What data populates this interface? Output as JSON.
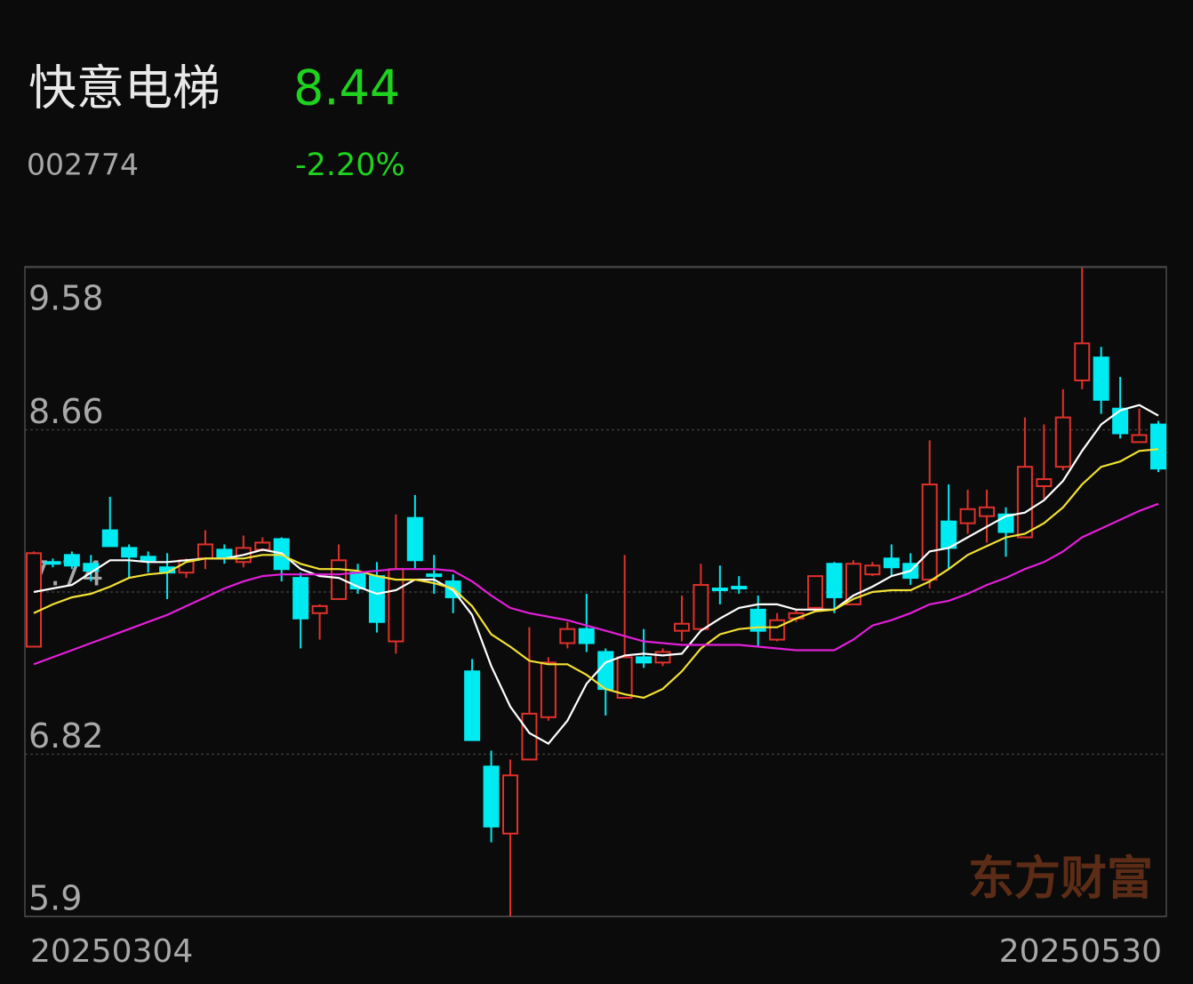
{
  "header": {
    "name": "快意电梯",
    "price": "8.44",
    "code": "002774",
    "change": "-2.20%"
  },
  "watermark": "东方财富",
  "chart_data": {
    "type": "candlestick",
    "categories": [
      "20250304",
      null,
      null,
      null,
      null,
      null,
      null,
      null,
      null,
      null,
      null,
      null,
      null,
      null,
      null,
      null,
      null,
      null,
      null,
      null,
      null,
      null,
      null,
      null,
      null,
      null,
      null,
      null,
      null,
      null,
      null,
      null,
      null,
      null,
      null,
      null,
      null,
      null,
      null,
      null,
      null,
      null,
      null,
      null,
      null,
      null,
      null,
      null,
      null,
      null,
      null,
      null,
      null,
      null,
      null,
      null,
      null,
      null,
      null,
      "20250530"
    ],
    "open": [
      7.43,
      7.91,
      7.95,
      7.9,
      8.09,
      7.99,
      7.94,
      7.88,
      7.85,
      7.93,
      7.98,
      7.91,
      7.98,
      8.04,
      7.82,
      7.62,
      7.7,
      7.85,
      7.83,
      7.46,
      8.16,
      7.84,
      7.8,
      7.29,
      6.75,
      6.37,
      6.79,
      7.03,
      7.45,
      7.53,
      7.4,
      7.14,
      7.37,
      7.34,
      7.52,
      7.53,
      7.76,
      7.77,
      7.64,
      7.47,
      7.59,
      7.65,
      7.9,
      7.67,
      7.84,
      7.93,
      7.9,
      7.81,
      8.14,
      8.13,
      8.17,
      8.18,
      8.05,
      8.34,
      8.45,
      8.94,
      9.07,
      8.78,
      8.59,
      8.69
    ],
    "high": [
      7.97,
      7.93,
      7.97,
      7.95,
      8.28,
      8.01,
      7.97,
      7.96,
      7.93,
      8.09,
      8.01,
      8.06,
      8.05,
      8.05,
      7.85,
      7.67,
      8.01,
      7.9,
      7.91,
      8.18,
      8.29,
      7.95,
      7.84,
      7.36,
      6.84,
      6.79,
      7.54,
      7.37,
      7.57,
      7.73,
      7.42,
      7.95,
      7.53,
      7.42,
      7.72,
      7.9,
      7.89,
      7.83,
      7.72,
      7.62,
      7.64,
      7.83,
      7.91,
      7.92,
      7.91,
      8.01,
      7.96,
      8.6,
      8.35,
      8.32,
      8.32,
      8.22,
      8.73,
      8.69,
      8.89,
      9.58,
      9.13,
      8.96,
      8.78,
      8.71
    ],
    "low": [
      7.43,
      7.88,
      7.87,
      7.8,
      8.0,
      7.82,
      7.85,
      7.7,
      7.82,
      7.87,
      7.9,
      7.88,
      7.97,
      7.8,
      7.42,
      7.47,
      7.7,
      7.73,
      7.51,
      7.39,
      7.87,
      7.73,
      7.62,
      6.9,
      6.32,
      5.9,
      6.79,
      7.01,
      7.42,
      7.4,
      7.04,
      7.14,
      7.31,
      7.32,
      7.46,
      7.52,
      7.67,
      7.73,
      7.43,
      7.46,
      7.57,
      7.63,
      7.62,
      7.67,
      7.83,
      7.83,
      7.78,
      7.76,
      7.87,
      8.07,
      8.02,
      7.94,
      8.05,
      8.27,
      8.43,
      8.89,
      8.75,
      8.61,
      8.59,
      8.42
    ],
    "close": [
      7.96,
      7.9,
      7.89,
      7.86,
      8.0,
      7.94,
      7.92,
      7.85,
      7.92,
      8.01,
      7.93,
      7.99,
      8.02,
      7.87,
      7.59,
      7.66,
      7.92,
      7.76,
      7.57,
      7.87,
      7.92,
      7.83,
      7.71,
      6.9,
      6.41,
      6.7,
      7.05,
      7.34,
      7.53,
      7.45,
      7.19,
      7.37,
      7.34,
      7.4,
      7.56,
      7.78,
      7.75,
      7.76,
      7.52,
      7.58,
      7.62,
      7.83,
      7.71,
      7.9,
      7.89,
      7.88,
      7.82,
      8.35,
      7.99,
      8.21,
      8.22,
      8.08,
      8.45,
      8.38,
      8.73,
      9.15,
      8.83,
      8.64,
      8.63,
      8.44
    ],
    "up_color": "#e0312b",
    "down_color": "#00eaf2",
    "lines": [
      {
        "color": "#ffffff",
        "values": [
          7.74,
          7.76,
          7.78,
          7.85,
          7.92,
          7.92,
          7.91,
          7.91,
          7.92,
          7.93,
          7.93,
          7.95,
          7.98,
          7.96,
          7.87,
          7.83,
          7.82,
          7.77,
          7.73,
          7.75,
          7.81,
          7.81,
          7.75,
          7.61,
          7.32,
          7.09,
          6.94,
          6.88,
          7.01,
          7.22,
          7.34,
          7.38,
          7.39,
          7.38,
          7.39,
          7.52,
          7.59,
          7.65,
          7.67,
          7.67,
          7.64,
          7.64,
          7.64,
          7.72,
          7.77,
          7.83,
          7.86,
          7.97,
          7.99,
          8.05,
          8.11,
          8.17,
          8.19,
          8.26,
          8.37,
          8.54,
          8.69,
          8.77,
          8.8,
          8.74
        ]
      },
      {
        "color": "#f2e034",
        "values": [
          7.62,
          7.67,
          7.71,
          7.73,
          7.77,
          7.82,
          7.84,
          7.85,
          7.91,
          7.93,
          7.93,
          7.93,
          7.95,
          7.95,
          7.9,
          7.87,
          7.87,
          7.86,
          7.83,
          7.81,
          7.81,
          7.79,
          7.76,
          7.66,
          7.5,
          7.43,
          7.35,
          7.33,
          7.33,
          7.27,
          7.19,
          7.16,
          7.14,
          7.19,
          7.29,
          7.42,
          7.5,
          7.53,
          7.54,
          7.54,
          7.59,
          7.63,
          7.64,
          7.7,
          7.74,
          7.75,
          7.75,
          7.8,
          7.87,
          7.95,
          8.0,
          8.05,
          8.07,
          8.13,
          8.22,
          8.35,
          8.45,
          8.48,
          8.54,
          8.55
        ]
      },
      {
        "color": "#e21fd8",
        "values": [
          7.33,
          7.37,
          7.41,
          7.45,
          7.49,
          7.53,
          7.57,
          7.61,
          7.66,
          7.71,
          7.76,
          7.8,
          7.83,
          7.84,
          7.84,
          7.84,
          7.84,
          7.85,
          7.86,
          7.87,
          7.87,
          7.87,
          7.86,
          7.8,
          7.72,
          7.65,
          7.62,
          7.6,
          7.58,
          7.55,
          7.52,
          7.49,
          7.46,
          7.45,
          7.44,
          7.44,
          7.44,
          7.44,
          7.43,
          7.42,
          7.41,
          7.41,
          7.41,
          7.47,
          7.55,
          7.58,
          7.62,
          7.67,
          7.69,
          7.73,
          7.78,
          7.82,
          7.87,
          7.91,
          7.97,
          8.05,
          8.1,
          8.15,
          8.2,
          8.24
        ]
      }
    ],
    "ylim": [
      5.9,
      9.58
    ],
    "yticks": [
      9.58,
      8.66,
      7.74,
      6.82,
      5.9
    ],
    "grid": true
  }
}
